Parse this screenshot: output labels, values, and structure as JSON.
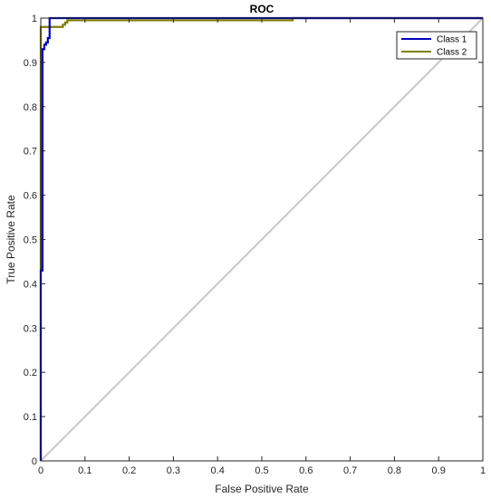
{
  "chart_data": {
    "type": "line",
    "title": "ROC",
    "xlabel": "False Positive Rate",
    "ylabel": "True Positive Rate",
    "xlim": [
      0,
      1
    ],
    "ylim": [
      0,
      1
    ],
    "xticks": [
      0,
      0.1,
      0.2,
      0.3,
      0.4,
      0.5,
      0.6,
      0.7,
      0.8,
      0.9,
      1
    ],
    "yticks": [
      0,
      0.1,
      0.2,
      0.3,
      0.4,
      0.5,
      0.6,
      0.7,
      0.8,
      0.9,
      1
    ],
    "xtick_labels": [
      "0",
      "0.1",
      "0.2",
      "0.3",
      "0.4",
      "0.5",
      "0.6",
      "0.7",
      "0.8",
      "0.9",
      "1"
    ],
    "ytick_labels": [
      "0",
      "0.1",
      "0.2",
      "0.3",
      "0.4",
      "0.5",
      "0.6",
      "0.7",
      "0.8",
      "0.9",
      "1"
    ],
    "grid": false,
    "legend_position": "top-right",
    "diagonal_color": "#c8c8c8",
    "series": [
      {
        "name": "Class 1",
        "color": "#0000bd",
        "x": [
          0,
          0,
          0.004,
          0.004,
          0.008,
          0.008,
          0.012,
          0.012,
          0.016,
          0.016,
          0.02,
          0.02,
          0.57,
          0.57,
          1
        ],
        "y": [
          0,
          0.43,
          0.43,
          0.93,
          0.93,
          0.94,
          0.94,
          0.945,
          0.945,
          0.955,
          0.955,
          1,
          1,
          1,
          1
        ]
      },
      {
        "name": "Class 2",
        "color": "#7f7f00",
        "x": [
          0,
          0,
          0.004,
          0.004,
          0.05,
          0.05,
          0.055,
          0.055,
          0.06,
          0.06,
          0.57,
          0.57,
          1
        ],
        "y": [
          0,
          0.98,
          0.98,
          0.98,
          0.98,
          0.985,
          0.985,
          0.99,
          0.99,
          0.995,
          0.995,
          1,
          1
        ]
      }
    ]
  }
}
